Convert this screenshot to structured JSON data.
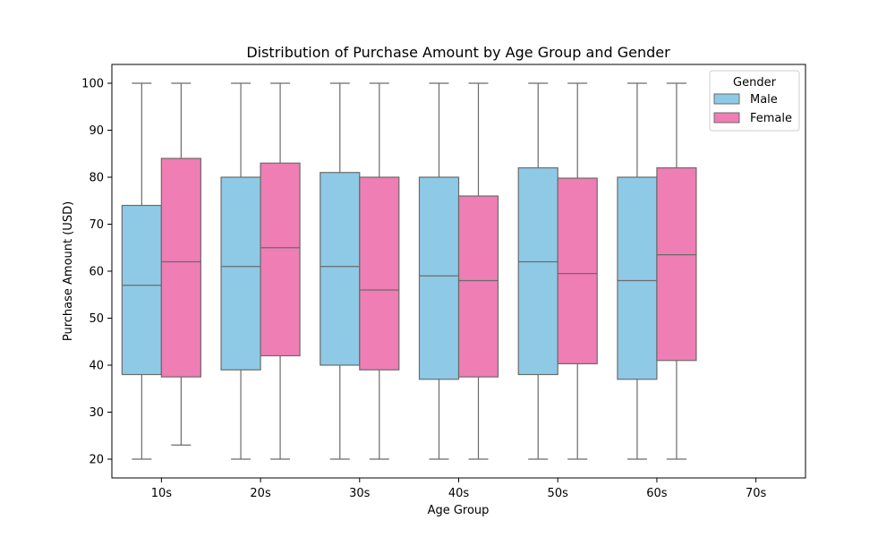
{
  "chart_data": {
    "type": "box",
    "title": "Distribution of Purchase Amount by Age Group and Gender",
    "xlabel": "Age Group",
    "ylabel": "Purchase Amount (USD)",
    "categories": [
      "10s",
      "20s",
      "30s",
      "40s",
      "50s",
      "60s",
      "70s"
    ],
    "ylim": [
      16,
      104
    ],
    "yticks": [
      20,
      30,
      40,
      50,
      60,
      70,
      80,
      90,
      100
    ],
    "grid": false,
    "legend": {
      "title": "Gender",
      "placement": "top-right"
    },
    "series": [
      {
        "name": "Male",
        "color": "#8ecae6",
        "boxes": [
          {
            "category": "10s",
            "min": 20,
            "q1": 38,
            "median": 57,
            "q3": 74,
            "max": 100
          },
          {
            "category": "20s",
            "min": 20,
            "q1": 39,
            "median": 61,
            "q3": 80,
            "max": 100
          },
          {
            "category": "30s",
            "min": 20,
            "q1": 40,
            "median": 61,
            "q3": 81,
            "max": 100
          },
          {
            "category": "40s",
            "min": 20,
            "q1": 37,
            "median": 59,
            "q3": 80,
            "max": 100
          },
          {
            "category": "50s",
            "min": 20,
            "q1": 38,
            "median": 62,
            "q3": 82,
            "max": 100
          },
          {
            "category": "60s",
            "min": 20,
            "q1": 37,
            "median": 58,
            "q3": 80,
            "max": 100
          }
        ]
      },
      {
        "name": "Female",
        "color": "#ee7eb4",
        "boxes": [
          {
            "category": "10s",
            "min": 23,
            "q1": 37.5,
            "median": 62,
            "q3": 84,
            "max": 100
          },
          {
            "category": "20s",
            "min": 20,
            "q1": 42,
            "median": 65,
            "q3": 83,
            "max": 100
          },
          {
            "category": "30s",
            "min": 20,
            "q1": 39,
            "median": 56,
            "q3": 80,
            "max": 100
          },
          {
            "category": "40s",
            "min": 20,
            "q1": 37.5,
            "median": 58,
            "q3": 76,
            "max": 100
          },
          {
            "category": "50s",
            "min": 20,
            "q1": 40.3,
            "median": 59.5,
            "q3": 79.8,
            "max": 100
          },
          {
            "category": "60s",
            "min": 20,
            "q1": 41,
            "median": 63.5,
            "q3": 82,
            "max": 100
          }
        ]
      }
    ]
  }
}
